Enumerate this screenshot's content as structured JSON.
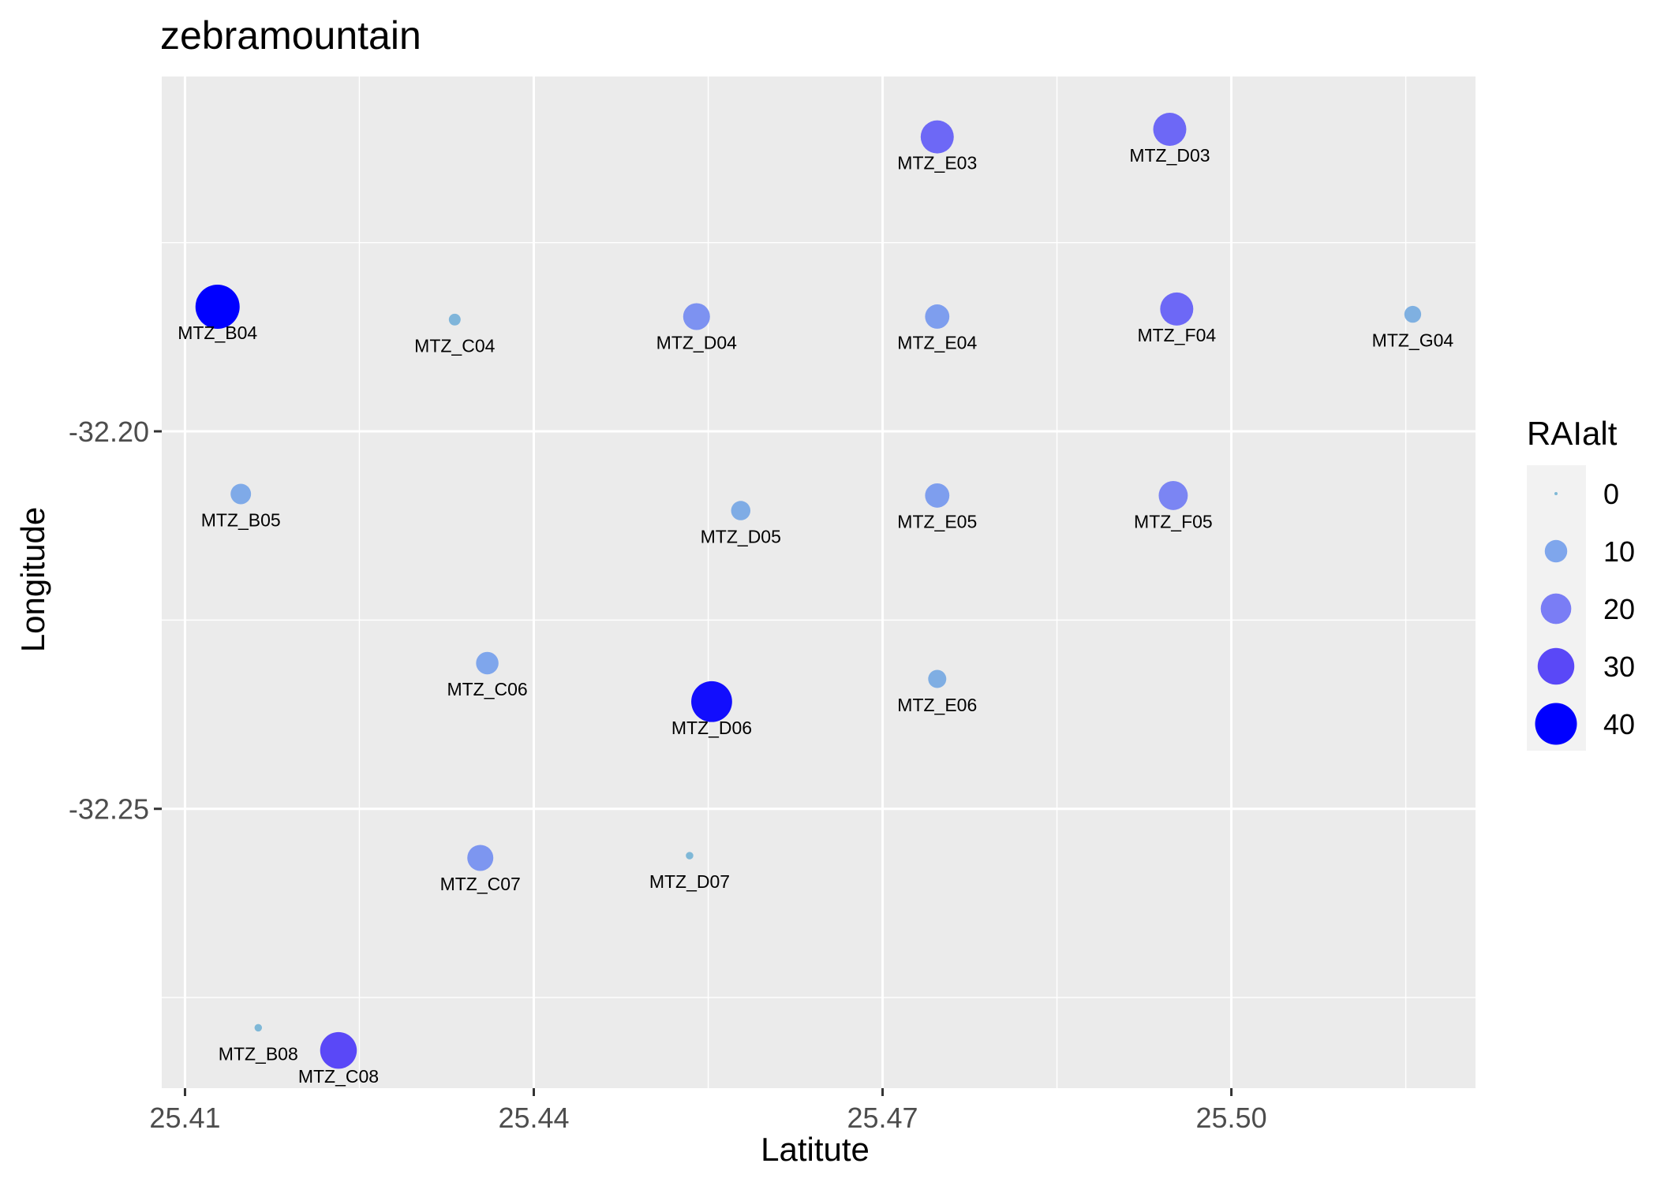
{
  "chart_data": {
    "type": "scatter",
    "title": "zebramountain",
    "xlabel": "Latitute",
    "ylabel": "Longitude",
    "xlim": [
      25.408,
      25.521
    ],
    "ylim": [
      -32.287,
      -32.153
    ],
    "x_ticks": [
      25.41,
      25.44,
      25.47,
      25.5
    ],
    "x_tick_labels": [
      "25.41",
      "25.44",
      "25.47",
      "25.50"
    ],
    "y_ticks": [
      -32.2,
      -32.25
    ],
    "y_tick_labels": [
      "-32.20",
      "-32.25"
    ],
    "grid": true,
    "size_variable": "RAIalt",
    "legend": {
      "title": "RAIalt",
      "placement": "right",
      "entries": [
        {
          "value": 0,
          "label": "0",
          "color": "#7fb9d6"
        },
        {
          "value": 10,
          "label": "10",
          "color": "#7fa6ec"
        },
        {
          "value": 20,
          "label": "20",
          "color": "#7a7df5"
        },
        {
          "value": 30,
          "label": "30",
          "color": "#5a48f7"
        },
        {
          "value": 40,
          "label": "40",
          "color": "#0000ff"
        }
      ]
    },
    "points": [
      {
        "label": "MTZ_E03",
        "x": 25.4747,
        "y": -32.161,
        "value": 24
      },
      {
        "label": "MTZ_D03",
        "x": 25.4947,
        "y": -32.16,
        "value": 24
      },
      {
        "label": "MTZ_B04",
        "x": 25.4128,
        "y": -32.1835,
        "value": 45
      },
      {
        "label": "MTZ_C04",
        "x": 25.4332,
        "y": -32.1852,
        "value": 2
      },
      {
        "label": "MTZ_D04",
        "x": 25.454,
        "y": -32.1848,
        "value": 15
      },
      {
        "label": "MTZ_E04",
        "x": 25.4747,
        "y": -32.1848,
        "value": 12
      },
      {
        "label": "MTZ_F04",
        "x": 25.4953,
        "y": -32.1838,
        "value": 24
      },
      {
        "label": "MTZ_G04",
        "x": 25.5156,
        "y": -32.1845,
        "value": 5
      },
      {
        "label": "MTZ_B05",
        "x": 25.4148,
        "y": -32.2083,
        "value": 8
      },
      {
        "label": "MTZ_D05",
        "x": 25.4578,
        "y": -32.2105,
        "value": 7
      },
      {
        "label": "MTZ_E05",
        "x": 25.4747,
        "y": -32.2085,
        "value": 12
      },
      {
        "label": "MTZ_F05",
        "x": 25.495,
        "y": -32.2085,
        "value": 18
      },
      {
        "label": "MTZ_C06",
        "x": 25.436,
        "y": -32.2307,
        "value": 10
      },
      {
        "label": "MTZ_D06",
        "x": 25.4553,
        "y": -32.2358,
        "value": 38
      },
      {
        "label": "MTZ_E06",
        "x": 25.4747,
        "y": -32.2328,
        "value": 6
      },
      {
        "label": "MTZ_C07",
        "x": 25.4354,
        "y": -32.2565,
        "value": 14
      },
      {
        "label": "MTZ_D07",
        "x": 25.4534,
        "y": -32.2562,
        "value": 0.5
      },
      {
        "label": "MTZ_B08",
        "x": 25.4163,
        "y": -32.279,
        "value": 0.5
      },
      {
        "label": "MTZ_C08",
        "x": 25.4232,
        "y": -32.282,
        "value": 30
      }
    ]
  }
}
